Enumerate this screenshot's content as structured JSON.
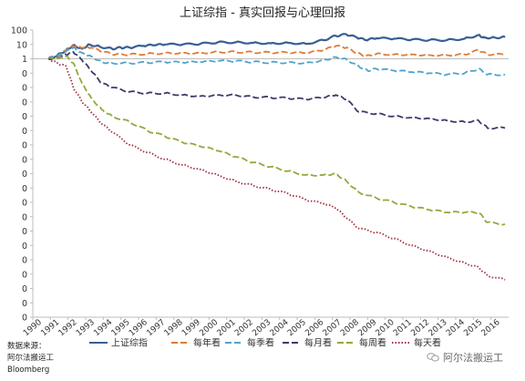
{
  "chart_data": {
    "type": "line",
    "title": "上证综指 - 真实回报与心理回报",
    "y_scale": "log",
    "y_tick_labels": [
      "100",
      "10",
      "1",
      "0",
      "0",
      "0",
      "0",
      "0",
      "0",
      "0",
      "0",
      "0",
      "0",
      "0",
      "0",
      "0",
      "0",
      "0",
      "0",
      "0",
      "0"
    ],
    "x_tick_labels": [
      "1990",
      "1991",
      "1992",
      "1993",
      "1994",
      "1995",
      "1996",
      "1997",
      "1998",
      "1999",
      "2000",
      "2001",
      "2002",
      "2003",
      "2004",
      "2005",
      "2006",
      "2007",
      "2008",
      "2009",
      "2010",
      "2011",
      "2012",
      "2013",
      "2014",
      "2015",
      "2016"
    ],
    "ylim": [
      1e-18,
      100
    ],
    "grid": false,
    "legend_position": "bottom",
    "series": [
      {
        "name": "上证综指",
        "color": "#3a5f93",
        "style": "solid",
        "points": [
          [
            1990.9,
            1
          ],
          [
            1991.4,
            1.8
          ],
          [
            1991.9,
            4
          ],
          [
            1992.3,
            9
          ],
          [
            1992.8,
            5
          ],
          [
            1993.2,
            10
          ],
          [
            1993.8,
            7
          ],
          [
            1994.5,
            5
          ],
          [
            1995.0,
            6
          ],
          [
            1995.5,
            6
          ],
          [
            1996.3,
            8
          ],
          [
            1996.9,
            9
          ],
          [
            1997.5,
            10
          ],
          [
            1998.5,
            10
          ],
          [
            1999.5,
            11
          ],
          [
            2000.5,
            14
          ],
          [
            2001.5,
            14
          ],
          [
            2002.5,
            13
          ],
          [
            2003.5,
            12
          ],
          [
            2004.5,
            13
          ],
          [
            2005.5,
            11
          ],
          [
            2006.5,
            20
          ],
          [
            2007.2,
            40
          ],
          [
            2007.8,
            50
          ],
          [
            2008.4,
            30
          ],
          [
            2008.9,
            20
          ],
          [
            2009.5,
            27
          ],
          [
            2010.5,
            25
          ],
          [
            2011.5,
            22
          ],
          [
            2012.5,
            20
          ],
          [
            2013.5,
            20
          ],
          [
            2014.5,
            25
          ],
          [
            2015.3,
            45
          ],
          [
            2015.6,
            30
          ],
          [
            2016.2,
            30
          ],
          [
            2016.8,
            32
          ]
        ]
      },
      {
        "name": "每年看",
        "color": "#e07b35",
        "style": "dash",
        "points": [
          [
            1990.9,
            1
          ],
          [
            1991.4,
            1.5
          ],
          [
            1991.9,
            4
          ],
          [
            1992.3,
            8
          ],
          [
            1992.8,
            6
          ],
          [
            1993.3,
            6
          ],
          [
            1994.0,
            3
          ],
          [
            1994.7,
            2
          ],
          [
            1995.5,
            2
          ],
          [
            1996.5,
            2.2
          ],
          [
            1997.5,
            2.5
          ],
          [
            1998.5,
            2.5
          ],
          [
            1999.5,
            2.5
          ],
          [
            2000.5,
            3
          ],
          [
            2001.5,
            3
          ],
          [
            2002.5,
            2.8
          ],
          [
            2003.5,
            2.7
          ],
          [
            2004.5,
            2.7
          ],
          [
            2005.5,
            2.5
          ],
          [
            2006.5,
            4
          ],
          [
            2007.2,
            8
          ],
          [
            2007.8,
            6
          ],
          [
            2008.4,
            2.5
          ],
          [
            2008.9,
            1.5
          ],
          [
            2009.5,
            2.2
          ],
          [
            2010.5,
            2
          ],
          [
            2011.5,
            2
          ],
          [
            2012.5,
            1.8
          ],
          [
            2013.5,
            1.8
          ],
          [
            2014.5,
            2
          ],
          [
            2015.3,
            4
          ],
          [
            2015.8,
            2
          ],
          [
            2016.8,
            2
          ]
        ]
      },
      {
        "name": "每季看",
        "color": "#4fa4c9",
        "style": "dash",
        "points": [
          [
            1990.9,
            1
          ],
          [
            1991.4,
            1.5
          ],
          [
            1991.9,
            3.5
          ],
          [
            1992.3,
            6
          ],
          [
            1992.8,
            2.5
          ],
          [
            1993.3,
            1.5
          ],
          [
            1993.9,
            0.6
          ],
          [
            1994.5,
            0.5
          ],
          [
            1995.5,
            0.5
          ],
          [
            1996.5,
            0.55
          ],
          [
            1997.5,
            0.6
          ],
          [
            1998.5,
            0.55
          ],
          [
            1999.5,
            0.6
          ],
          [
            2000.5,
            0.7
          ],
          [
            2001.5,
            0.7
          ],
          [
            2002.5,
            0.6
          ],
          [
            2003.5,
            0.55
          ],
          [
            2004.5,
            0.55
          ],
          [
            2005.5,
            0.5
          ],
          [
            2006.5,
            0.8
          ],
          [
            2007.2,
            1.3
          ],
          [
            2007.8,
            0.9
          ],
          [
            2008.5,
            0.3
          ],
          [
            2009.0,
            0.15
          ],
          [
            2009.5,
            0.2
          ],
          [
            2010.5,
            0.15
          ],
          [
            2011.5,
            0.12
          ],
          [
            2012.5,
            0.1
          ],
          [
            2013.5,
            0.08
          ],
          [
            2014.5,
            0.1
          ],
          [
            2015.3,
            0.2
          ],
          [
            2015.8,
            0.08
          ],
          [
            2016.8,
            0.08
          ]
        ]
      },
      {
        "name": "每月看",
        "color": "#3b3b6d",
        "style": "dash",
        "points": [
          [
            1990.9,
            1
          ],
          [
            1991.4,
            1.2
          ],
          [
            1991.9,
            2
          ],
          [
            1992.3,
            3
          ],
          [
            1992.8,
            0.8
          ],
          [
            1993.3,
            0.15
          ],
          [
            1993.9,
            0.02
          ],
          [
            1994.5,
            0.01
          ],
          [
            1995.5,
            0.005
          ],
          [
            1996.5,
            0.004
          ],
          [
            1997.5,
            0.004
          ],
          [
            1998.5,
            0.003
          ],
          [
            1999.5,
            0.0025
          ],
          [
            2000.5,
            0.003
          ],
          [
            2001.5,
            0.003
          ],
          [
            2002.5,
            0.0022
          ],
          [
            2003.5,
            0.002
          ],
          [
            2004.5,
            0.0018
          ],
          [
            2005.5,
            0.0015
          ],
          [
            2006.5,
            0.002
          ],
          [
            2007.2,
            0.003
          ],
          [
            2007.8,
            0.0015
          ],
          [
            2008.5,
            0.0002
          ],
          [
            2009.5,
            0.00015
          ],
          [
            2010.5,
            0.0001
          ],
          [
            2011.5,
            8e-05
          ],
          [
            2012.5,
            7e-05
          ],
          [
            2013.5,
            5e-05
          ],
          [
            2014.5,
            4e-05
          ],
          [
            2015.3,
            5e-05
          ],
          [
            2015.8,
            1.5e-05
          ],
          [
            2016.8,
            1.5e-05
          ]
        ]
      },
      {
        "name": "每周看",
        "color": "#8faa3e",
        "style": "dash",
        "points": [
          [
            1990.9,
            1
          ],
          [
            1991.4,
            1
          ],
          [
            1991.9,
            1.5
          ],
          [
            1992.3,
            0.5
          ],
          [
            1992.8,
            0.02
          ],
          [
            1993.3,
            0.002
          ],
          [
            1993.9,
            0.0003
          ],
          [
            1994.5,
            0.0001
          ],
          [
            1995.5,
            4e-05
          ],
          [
            1996.5,
            1e-05
          ],
          [
            1997.5,
            4e-06
          ],
          [
            1998.5,
            1.5e-06
          ],
          [
            1999.5,
            8e-07
          ],
          [
            2000.5,
            4e-07
          ],
          [
            2001.5,
            1.5e-07
          ],
          [
            2002.5,
            6e-08
          ],
          [
            2003.5,
            3e-08
          ],
          [
            2004.5,
            1.5e-08
          ],
          [
            2005.5,
            8e-09
          ],
          [
            2006.5,
            8e-09
          ],
          [
            2007.2,
            1e-08
          ],
          [
            2007.8,
            3e-09
          ],
          [
            2008.5,
            5e-10
          ],
          [
            2009.5,
            2e-10
          ],
          [
            2010.5,
            1e-10
          ],
          [
            2011.5,
            5e-11
          ],
          [
            2012.5,
            3e-11
          ],
          [
            2013.5,
            2e-11
          ],
          [
            2014.5,
            2e-11
          ],
          [
            2015.3,
            2e-11
          ],
          [
            2015.8,
            4e-12
          ],
          [
            2016.8,
            3e-12
          ]
        ]
      },
      {
        "name": "每天看",
        "color": "#a0303f",
        "style": "dot",
        "points": [
          [
            1990.9,
            1
          ],
          [
            1991.4,
            0.5
          ],
          [
            1991.9,
            0.3
          ],
          [
            1992.3,
            0.01
          ],
          [
            1992.8,
            0.001
          ],
          [
            1993.3,
            0.0002
          ],
          [
            1993.9,
            3e-05
          ],
          [
            1994.5,
            8e-06
          ],
          [
            1995.5,
            1e-06
          ],
          [
            1996.5,
            3e-07
          ],
          [
            1997.5,
            1e-07
          ],
          [
            1998.5,
            4e-08
          ],
          [
            1999.5,
            2e-08
          ],
          [
            2000.5,
            8e-09
          ],
          [
            2001.5,
            3e-09
          ],
          [
            2002.5,
            1.5e-09
          ],
          [
            2003.5,
            8e-10
          ],
          [
            2004.5,
            4e-10
          ],
          [
            2005.5,
            1.5e-10
          ],
          [
            2006.5,
            8e-11
          ],
          [
            2007.2,
            4e-11
          ],
          [
            2007.8,
            8e-12
          ],
          [
            2008.5,
            1.5e-12
          ],
          [
            2009.5,
            8e-13
          ],
          [
            2010.5,
            3e-13
          ],
          [
            2011.5,
            1e-13
          ],
          [
            2012.5,
            4e-14
          ],
          [
            2013.5,
            1.5e-14
          ],
          [
            2014.5,
            6e-15
          ],
          [
            2015.3,
            3e-15
          ],
          [
            2015.8,
            8e-16
          ],
          [
            2016.8,
            4e-16
          ]
        ]
      }
    ]
  },
  "notes": {
    "line1": "数据来源：",
    "line2": "阿尔法搬运工",
    "line3": "Bloomberg"
  },
  "watermark": {
    "text": "阿尔法搬运工",
    "icon": "wechat-icon"
  }
}
